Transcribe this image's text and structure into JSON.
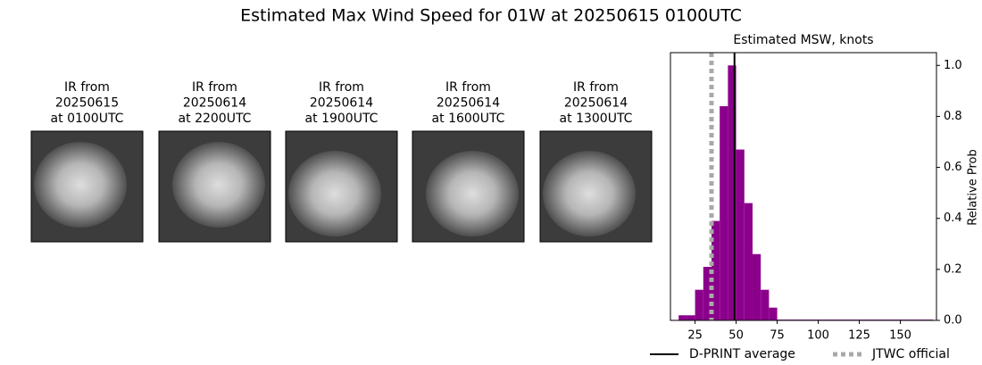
{
  "title": "Estimated Max Wind Speed for 01W at 20250615 0100UTC",
  "ir_panels": [
    {
      "title": [
        "IR from",
        "20250615",
        "at 0100UTC"
      ]
    },
    {
      "title": [
        "IR from",
        "20250614",
        "at 2200UTC"
      ]
    },
    {
      "title": [
        "IR from",
        "20250614",
        "at 1900UTC"
      ]
    },
    {
      "title": [
        "IR from",
        "20250614",
        "at 1600UTC"
      ]
    },
    {
      "title": [
        "IR from",
        "20250614",
        "at 1300UTC"
      ]
    }
  ],
  "chart_data": {
    "type": "histogram",
    "title": "Estimated MSW, knots",
    "y_label": "Relative Prob",
    "color": "#8b008b",
    "bins": [
      15,
      20,
      25,
      30,
      35,
      40,
      45,
      50,
      55,
      60,
      65,
      70,
      75,
      80,
      85,
      90,
      95,
      100,
      105,
      110,
      115,
      120,
      125,
      130,
      135,
      140,
      145,
      150,
      155,
      160,
      165,
      170
    ],
    "values": [
      0.02,
      0.02,
      0.12,
      0.21,
      0.39,
      0.84,
      1.0,
      0.67,
      0.46,
      0.26,
      0.12,
      0.05,
      0.003,
      0.003,
      0.003,
      0.003,
      0.003,
      0.003,
      0.003,
      0.003,
      0.003,
      0.003,
      0.003,
      0.003,
      0.003,
      0.003,
      0.003,
      0.003,
      0.003,
      0.003,
      0.003
    ],
    "xlim": [
      10,
      172
    ],
    "ylim": [
      0,
      1.05
    ],
    "xticks": [
      25,
      50,
      75,
      100,
      125,
      150
    ],
    "yticks": [
      {
        "value": 0,
        "label": "0.0"
      },
      0.2,
      0.4,
      0.6,
      0.8,
      {
        "value": 1,
        "label": "1.0"
      }
    ],
    "vlines": [
      {
        "name": "D-PRINT average",
        "value": 49,
        "color": "#000000",
        "style": "solid"
      },
      {
        "name": "JTWC official",
        "value": 35,
        "color": "#a9a9a9",
        "style": "dotted"
      }
    ]
  }
}
